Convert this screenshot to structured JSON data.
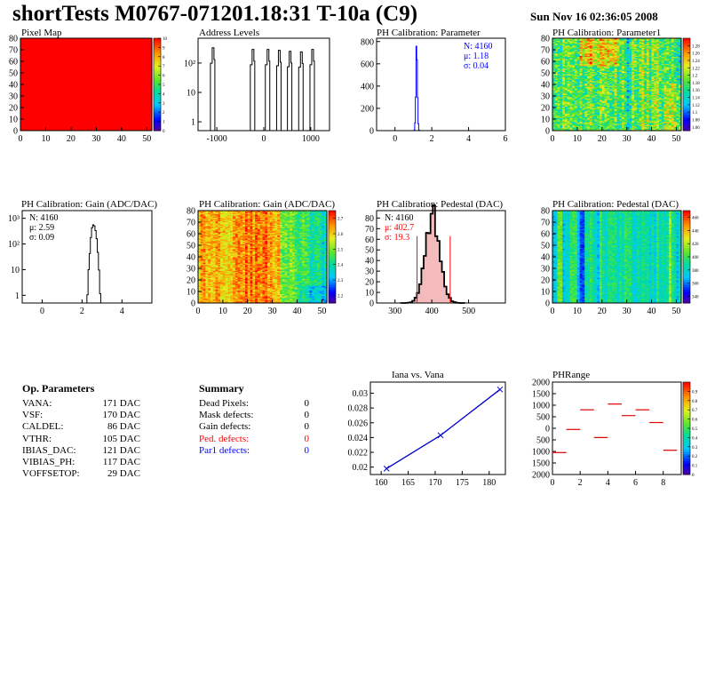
{
  "header": {
    "title": "shortTests M0767-071201.18:31 T-10a (C9)",
    "date": "Sun Nov 16 02:36:05 2008"
  },
  "op_parameters": {
    "heading": "Op. Parameters",
    "rows": [
      {
        "label": "VANA:",
        "value": "171 DAC"
      },
      {
        "label": "VSF:",
        "value": "170 DAC"
      },
      {
        "label": "CALDEL:",
        "value": "86 DAC"
      },
      {
        "label": "VTHR:",
        "value": "105 DAC"
      },
      {
        "label": "IBIAS_DAC:",
        "value": "121 DAC"
      },
      {
        "label": "VIBIAS_PH:",
        "value": "117 DAC"
      },
      {
        "label": "VOFFSETOP:",
        "value": "29 DAC"
      }
    ]
  },
  "summary": {
    "heading": "Summary",
    "rows": [
      {
        "label": "Dead Pixels:",
        "value": "0",
        "color": "#000000"
      },
      {
        "label": "Mask defects:",
        "value": "0",
        "color": "#000000"
      },
      {
        "label": "Gain defects:",
        "value": "0",
        "color": "#000000"
      },
      {
        "label": "Ped. defects:",
        "value": "0",
        "color": "#ff0000"
      },
      {
        "label": "Par1 defects:",
        "value": "0",
        "color": "#0000ff"
      }
    ]
  },
  "chart_data": [
    {
      "id": "pixel-map",
      "type": "heatmap",
      "title": "Pixel Map",
      "xlim": [
        0,
        52
      ],
      "ylim": [
        0,
        80
      ],
      "xticks": [
        0,
        10,
        20,
        30,
        40,
        50
      ],
      "yticks": [
        0,
        10,
        20,
        30,
        40,
        50,
        60,
        70,
        80
      ],
      "zlim": [
        0,
        10
      ],
      "zticks": [
        0,
        1,
        2,
        3,
        4,
        5,
        6,
        7,
        8,
        9,
        10
      ],
      "fill": "uniform",
      "value": 10
    },
    {
      "id": "address-levels",
      "type": "bar",
      "title": "Address Levels",
      "xlim": [
        -1400,
        1400
      ],
      "log_y": true,
      "ylim": [
        0.5,
        700
      ],
      "xticks": [
        -1000,
        0,
        1000
      ],
      "xtick_labels": [
        "-1000",
        "0",
        "1000"
      ],
      "yticks": [
        1,
        10,
        100
      ],
      "ytick_labels": [
        "1",
        "10",
        "10²"
      ],
      "peaks": [
        {
          "x": -1080,
          "y": 330
        },
        {
          "x": -230,
          "y": 290
        },
        {
          "x": 90,
          "y": 290
        },
        {
          "x": 330,
          "y": 270
        },
        {
          "x": 560,
          "y": 250
        },
        {
          "x": 800,
          "y": 240
        },
        {
          "x": 1040,
          "y": 290
        }
      ]
    },
    {
      "id": "ph-cal-parameter",
      "type": "bar",
      "title": "PH Calibration: Parameter",
      "xlim": [
        -1,
        6
      ],
      "ylim": [
        0,
        830
      ],
      "xticks": [
        0,
        2,
        4,
        6
      ],
      "yticks": [
        0,
        200,
        400,
        600,
        800
      ],
      "mean": 1.18,
      "sigma": 0.04,
      "peak": 800,
      "stats": [
        {
          "label": "N: 4160",
          "color": "#0000ff"
        },
        {
          "label": "μ: 1.18",
          "color": "#0000ff"
        },
        {
          "label": "σ: 0.04",
          "color": "#0000ff"
        }
      ]
    },
    {
      "id": "ph-cal-parameter1",
      "type": "heatmap",
      "title": "PH Calibration: Parameter1",
      "xlim": [
        0,
        52
      ],
      "ylim": [
        0,
        80
      ],
      "xticks": [
        0,
        10,
        20,
        30,
        40,
        50
      ],
      "yticks": [
        0,
        10,
        20,
        30,
        40,
        50,
        60,
        70,
        80
      ],
      "zlim": [
        1.05,
        1.3
      ],
      "zticks": [
        1.06,
        1.08,
        1.1,
        1.12,
        1.14,
        1.16,
        1.18,
        1.2,
        1.22,
        1.24,
        1.26,
        1.28
      ]
    },
    {
      "id": "ph-cal-gain-hist",
      "type": "bar",
      "title": "PH Calibration: Gain (ADC/DAC)",
      "xlim": [
        -1,
        5.5
      ],
      "log_y": true,
      "ylim": [
        0.5,
        2000
      ],
      "xticks": [
        0,
        2,
        4
      ],
      "yticks": [
        1,
        10,
        100,
        1000
      ],
      "ytick_labels": [
        "1",
        "10",
        "10²",
        "10³"
      ],
      "mean": 2.59,
      "sigma": 0.09,
      "peak": 600,
      "stats": [
        {
          "label": "N: 4160",
          "color": "#000000"
        },
        {
          "label": "μ: 2.59",
          "color": "#000000"
        },
        {
          "label": "σ: 0.09",
          "color": "#000000"
        }
      ]
    },
    {
      "id": "ph-cal-gain-map",
      "type": "heatmap",
      "title": "PH Calibration: Gain (ADC/DAC)",
      "xlim": [
        0,
        52
      ],
      "ylim": [
        0,
        80
      ],
      "xticks": [
        0,
        10,
        20,
        30,
        40,
        50
      ],
      "yticks": [
        0,
        10,
        20,
        30,
        40,
        50,
        60,
        70,
        80
      ],
      "zlim": [
        2.15,
        2.75
      ],
      "zticks": [
        2.2,
        2.3,
        2.4,
        2.5,
        2.6,
        2.7
      ]
    },
    {
      "id": "ph-cal-pedestal-hist",
      "type": "bar",
      "title": "PH Calibration: Pedestal (DAC)",
      "xlim": [
        250,
        600
      ],
      "ylim": [
        0,
        87
      ],
      "xticks": [
        300,
        400,
        500
      ],
      "yticks": [
        0,
        10,
        20,
        30,
        40,
        50,
        60,
        70,
        80
      ],
      "mean": 402.7,
      "sigma": 19.3,
      "peak": 83,
      "cuts": [
        360,
        450
      ],
      "stats": [
        {
          "label": "N: 4160",
          "color": "#000000"
        },
        {
          "label": "μ: 402.7",
          "color": "#ff0000"
        },
        {
          "label": "σ: 19.3",
          "color": "#ff0000"
        }
      ]
    },
    {
      "id": "ph-cal-pedestal-map",
      "type": "heatmap",
      "title": "PH Calibration: Pedestal (DAC)",
      "xlim": [
        0,
        52
      ],
      "ylim": [
        0,
        80
      ],
      "xticks": [
        0,
        10,
        20,
        30,
        40,
        50
      ],
      "yticks": [
        0,
        10,
        20,
        30,
        40,
        50,
        60,
        70,
        80
      ],
      "zlim": [
        330,
        470
      ],
      "zticks": [
        340,
        360,
        380,
        400,
        420,
        440,
        460
      ]
    },
    {
      "id": "iana-vs-vana",
      "type": "line",
      "title": "Iana vs. Vana",
      "xlim": [
        158,
        183
      ],
      "ylim": [
        0.019,
        0.0315
      ],
      "xticks": [
        160,
        165,
        170,
        175,
        180
      ],
      "yticks": [
        0.02,
        0.022,
        0.024,
        0.026,
        0.028,
        0.03
      ],
      "ytick_labels": [
        "0.02",
        "0.022",
        "0.024",
        "0.026",
        "0.028",
        "0.03"
      ],
      "x": [
        161,
        171,
        182
      ],
      "y": [
        0.0198,
        0.0243,
        0.0305
      ]
    },
    {
      "id": "phrange",
      "type": "scatter",
      "title": "PHRange",
      "xlim": [
        0,
        9.3
      ],
      "ylim": [
        -2000,
        2000
      ],
      "xticks": [
        0,
        2,
        4,
        6,
        8
      ],
      "yticks": [
        -2000,
        -1500,
        -1000,
        -500,
        0,
        500,
        1000,
        1500,
        2000
      ],
      "ytick_labels": [
        "2000",
        "1500",
        "1000",
        "500",
        "0",
        "500",
        "1000",
        "1500",
        "2000"
      ],
      "zlim": [
        0,
        1
      ],
      "zticks": [
        0,
        0.1,
        0.2,
        0.3,
        0.4,
        0.5,
        0.6,
        0.7,
        0.8,
        0.9
      ],
      "x": [
        0.5,
        1.5,
        2.5,
        3.5,
        4.5,
        5.5,
        6.5,
        7.5,
        8.5
      ],
      "y": [
        -1050,
        -50,
        800,
        -400,
        1050,
        550,
        800,
        250,
        -950
      ]
    }
  ]
}
